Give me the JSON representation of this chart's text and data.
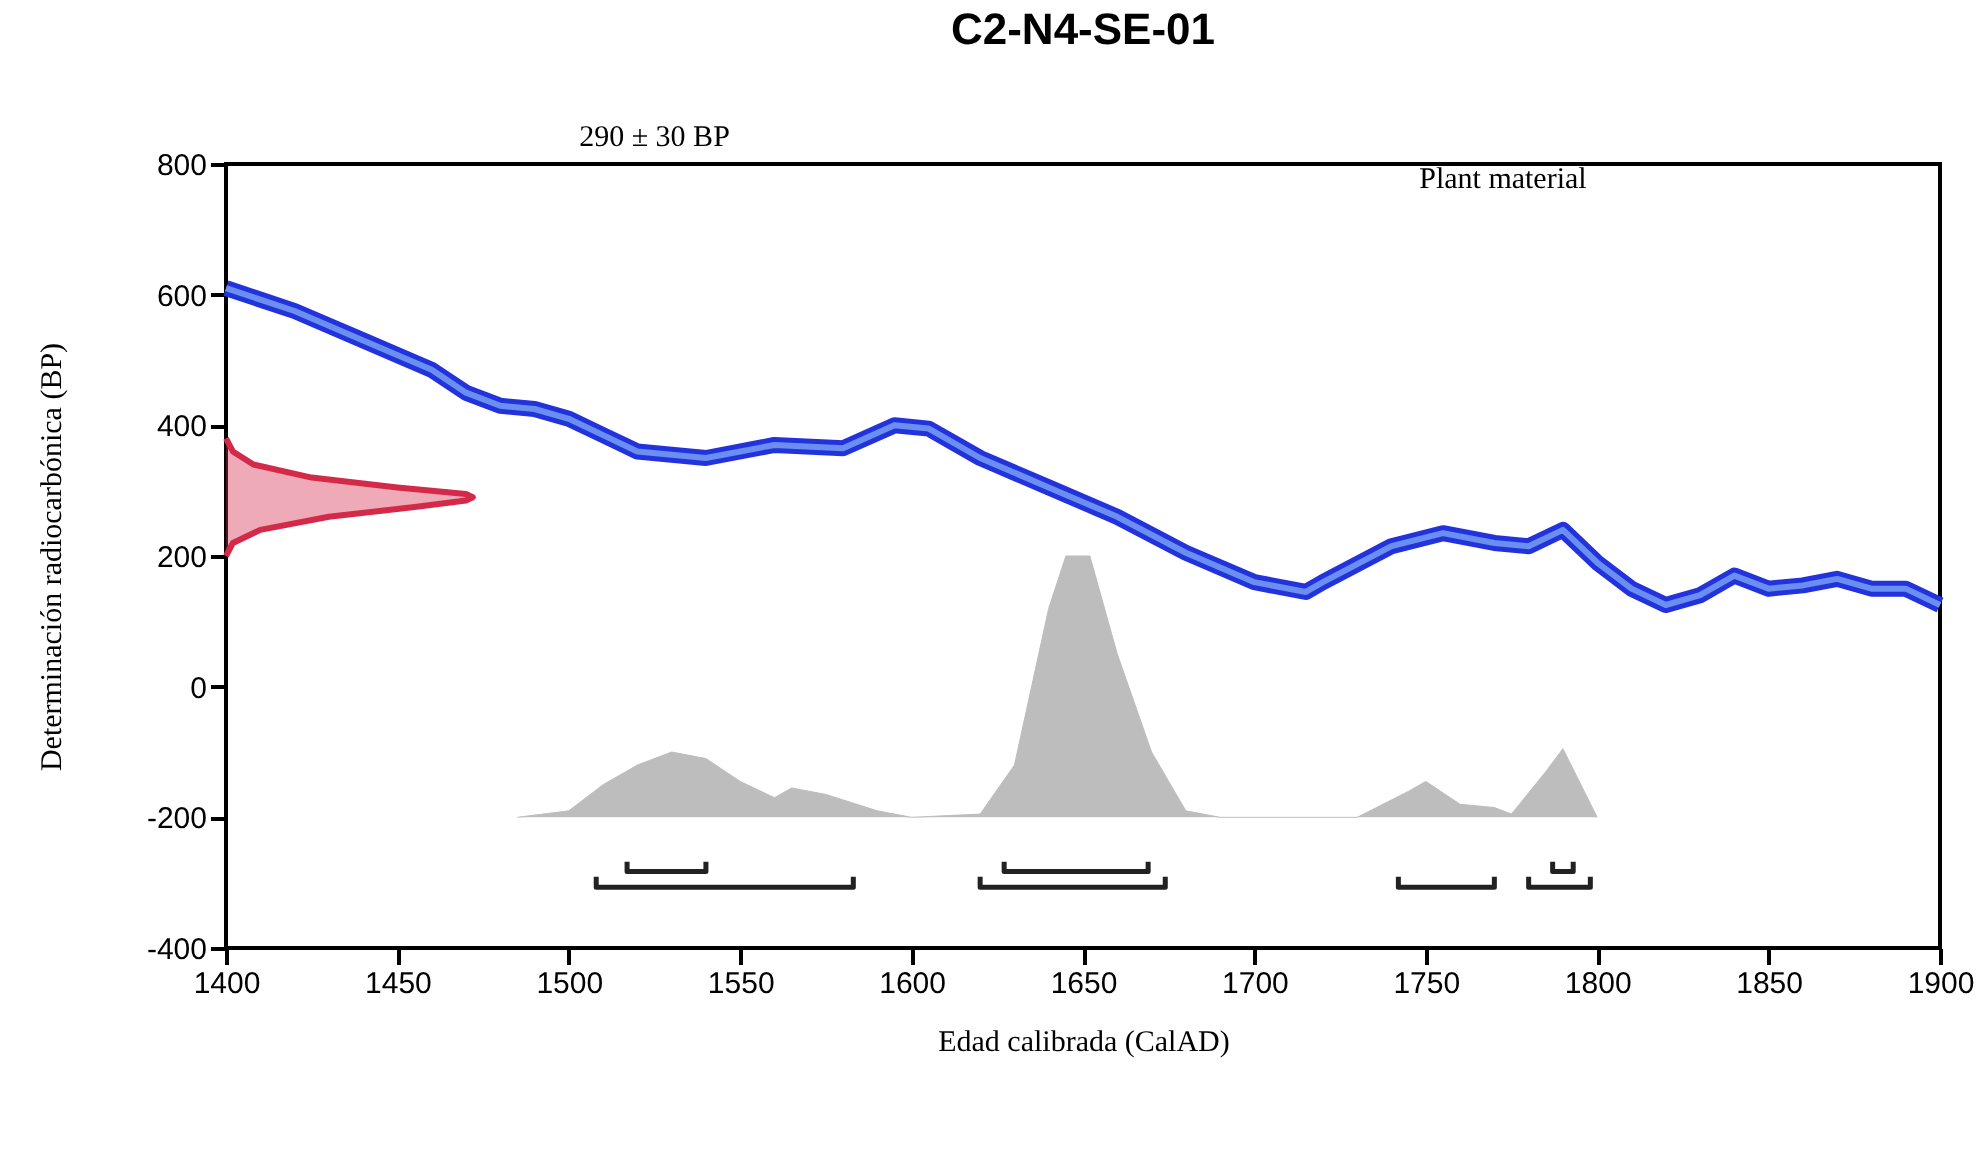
{
  "chart_data": {
    "type": "line",
    "title": "C2-N4-SE-01",
    "xlabel": "Edad calibrada                                        (CalAD)",
    "ylabel": "Determinación                    radiocarbónica                           (BP)",
    "annotations": [
      "290 ± 30 BP",
      "Plant material"
    ],
    "xlim": [
      1400,
      1900
    ],
    "xticks": [
      1400,
      1450,
      1500,
      1550,
      1600,
      1650,
      1700,
      1750,
      1800,
      1850,
      1900
    ],
    "ylim": [
      -400,
      800
    ],
    "yticks": [
      -400,
      -200,
      0,
      200,
      400,
      600,
      800
    ],
    "series": [
      {
        "type": "area",
        "color": "#bdbdbd",
        "x": [
          1485,
          1500,
          1510,
          1520,
          1530,
          1540,
          1550,
          1560,
          1565,
          1575,
          1590,
          1600,
          1620,
          1630,
          1640,
          1645,
          1652,
          1660,
          1670,
          1680,
          1690,
          1730,
          1745,
          1750,
          1760,
          1770,
          1775,
          1785,
          1790,
          1800
        ],
        "values": [
          -200,
          -190,
          -150,
          -120,
          -100,
          -110,
          -145,
          -170,
          -155,
          -165,
          -190,
          -200,
          -195,
          -120,
          120,
          200,
          200,
          50,
          -100,
          -190,
          -200,
          -200,
          -160,
          -145,
          -180,
          -185,
          -195,
          -130,
          -95,
          -200
        ]
      },
      {
        "color": "#2233dd",
        "x": [
          1400,
          1420,
          1440,
          1460,
          1470,
          1480,
          1490,
          1500,
          1510,
          1520,
          1540,
          1560,
          1580,
          1595,
          1605,
          1620,
          1640,
          1660,
          1680,
          1700,
          1715,
          1720,
          1740,
          1755,
          1770,
          1780,
          1790,
          1800,
          1810,
          1820,
          1830,
          1840,
          1850,
          1860,
          1870,
          1880,
          1890,
          1900
        ],
        "values": [
          610,
          575,
          530,
          485,
          450,
          430,
          425,
          410,
          385,
          360,
          350,
          370,
          365,
          400,
          395,
          350,
          305,
          260,
          205,
          160,
          145,
          160,
          215,
          235,
          220,
          215,
          240,
          190,
          150,
          125,
          140,
          170,
          150,
          155,
          165,
          150,
          150,
          125
        ]
      },
      {
        "type": "area",
        "color": "#d42a4a",
        "x": [
          1400,
          1402,
          1410,
          1430,
          1455,
          1470,
          1472,
          1470,
          1450,
          1425,
          1408,
          1402,
          1400
        ],
        "values": [
          200,
          220,
          240,
          260,
          275,
          285,
          290,
          295,
          305,
          320,
          340,
          360,
          380
        ]
      },
      {
        "color": "#222222",
        "x": [
          1517,
          1517,
          1540,
          1540,
          1583,
          1627,
          1627,
          1669,
          1669,
          1700,
          1787,
          1787,
          1793,
          1793
        ],
        "values": [
          -268,
          -283,
          -283,
          -268,
          null,
          -268,
          -283,
          -283,
          -268,
          null,
          -268,
          -283,
          -283,
          -268
        ]
      },
      {
        "color": "#222222",
        "x": [
          1508,
          1508,
          1583,
          1583,
          1600,
          1620,
          1620,
          1674,
          1674,
          1700,
          1742,
          1742,
          1770,
          1770,
          1775,
          1780,
          1780,
          1798,
          1798
        ],
        "values": [
          -291,
          -307,
          -307,
          -291,
          null,
          -291,
          -307,
          -307,
          -291,
          null,
          -291,
          -307,
          -307,
          -291,
          null,
          -291,
          -307,
          -307,
          -291
        ]
      }
    ]
  }
}
